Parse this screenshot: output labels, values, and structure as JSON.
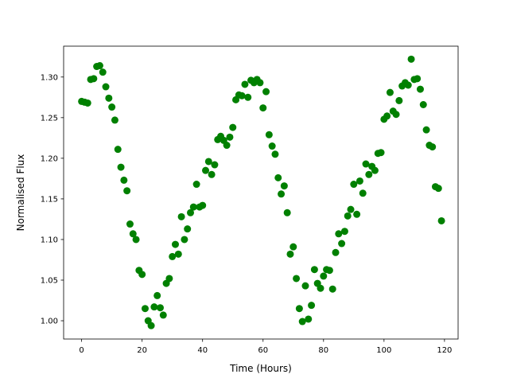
{
  "chart_data": {
    "type": "scatter",
    "x_label": "Time (Hours)",
    "y_label": "Normalised Flux",
    "color": "#008000",
    "x": [
      0,
      1,
      2,
      3,
      4,
      5,
      6,
      7,
      8,
      9,
      10,
      11,
      12,
      13,
      14,
      15,
      16,
      17,
      18,
      19,
      20,
      21,
      22,
      23,
      24,
      25,
      26,
      27,
      28,
      29,
      30,
      31,
      32,
      33,
      34,
      35,
      36,
      37,
      38,
      39,
      40,
      41,
      42,
      43,
      44,
      45,
      46,
      47,
      48,
      49,
      50,
      51,
      52,
      53,
      54,
      55,
      56,
      57,
      58,
      59,
      60,
      61,
      62,
      63,
      64,
      65,
      66,
      67,
      68,
      69,
      70,
      71,
      72,
      73,
      74,
      75,
      76,
      77,
      78,
      79,
      80,
      81,
      82,
      83,
      84,
      85,
      86,
      87,
      88,
      89,
      90,
      91,
      92,
      93,
      94,
      95,
      96,
      97,
      98,
      99,
      100,
      101,
      102,
      103,
      104,
      105,
      106,
      107,
      108,
      109,
      110,
      111,
      112,
      113,
      114,
      115,
      116,
      117,
      118,
      119
    ],
    "values": [
      1.27,
      1.269,
      1.268,
      1.297,
      1.298,
      1.313,
      1.314,
      1.306,
      1.288,
      1.274,
      1.263,
      1.247,
      1.211,
      1.189,
      1.173,
      1.16,
      1.119,
      1.107,
      1.1,
      1.062,
      1.057,
      1.015,
      1.0,
      0.994,
      1.017,
      1.031,
      1.016,
      1.007,
      1.046,
      1.052,
      1.079,
      1.094,
      1.082,
      1.128,
      1.1,
      1.113,
      1.133,
      1.14,
      1.168,
      1.14,
      1.142,
      1.185,
      1.196,
      1.18,
      1.192,
      1.223,
      1.227,
      1.222,
      1.216,
      1.226,
      1.238,
      1.272,
      1.278,
      1.277,
      1.291,
      1.275,
      1.296,
      1.293,
      1.297,
      1.293,
      1.262,
      1.282,
      1.229,
      1.215,
      1.205,
      1.176,
      1.156,
      1.166,
      1.133,
      1.082,
      1.091,
      1.052,
      1.015,
      0.999,
      1.043,
      1.002,
      1.019,
      1.063,
      1.046,
      1.04,
      1.055,
      1.063,
      1.062,
      1.039,
      1.084,
      1.107,
      1.095,
      1.11,
      1.129,
      1.137,
      1.168,
      1.131,
      1.172,
      1.157,
      1.193,
      1.18,
      1.19,
      1.185,
      1.206,
      1.207,
      1.248,
      1.252,
      1.281,
      1.258,
      1.254,
      1.271,
      1.289,
      1.293,
      1.29,
      1.322,
      1.297,
      1.298,
      1.285,
      1.266,
      1.235,
      1.216,
      1.214,
      1.165,
      1.163,
      1.123
    ],
    "xlim": [
      -5.95,
      124.5
    ],
    "ylim": [
      0.9775,
      1.338
    ],
    "xticks": [
      0,
      20,
      40,
      60,
      80,
      100,
      120
    ],
    "yticks": [
      {
        "value": 1,
        "label": "1.00"
      },
      1.05,
      {
        "value": 1.1,
        "label": "1.10"
      },
      1.15,
      {
        "value": 1.2,
        "label": "1.20"
      },
      1.25,
      {
        "value": 1.3,
        "label": "1.30"
      }
    ]
  }
}
